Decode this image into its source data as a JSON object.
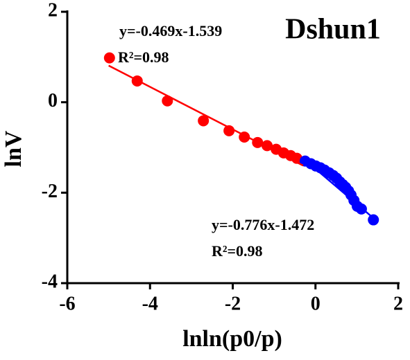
{
  "chart_data": {
    "type": "scatter",
    "title": "Dshun1",
    "x_label": "lnln(p0/p)",
    "y_label": "lnV",
    "xlim": [
      -6,
      2
    ],
    "ylim": [
      -4,
      2
    ],
    "xticks": [
      -6,
      -4,
      -2,
      0,
      2
    ],
    "yticks": [
      -4,
      -2,
      0,
      2
    ],
    "series": [
      {
        "color": "#ff0000",
        "mode": "markers",
        "x": [
          -4.98,
          -4.31,
          -3.58,
          -2.71,
          -2.09,
          -1.72,
          -1.4,
          -1.17,
          -0.95,
          -0.77,
          -0.6,
          -0.45
        ],
        "values": [
          0.98,
          0.47,
          0.03,
          -0.41,
          -0.63,
          -0.77,
          -0.89,
          -0.96,
          -1.04,
          -1.12,
          -1.18,
          -1.24
        ]
      },
      {
        "color": "#0000ff",
        "mode": "markers",
        "x": [
          -0.25,
          -0.11,
          0.01,
          0.12,
          0.22,
          0.33,
          0.43,
          0.51,
          0.59,
          0.66,
          0.73,
          0.8,
          0.86,
          0.93,
          1.01,
          1.11,
          1.4
        ],
        "values": [
          -1.3,
          -1.36,
          -1.41,
          -1.45,
          -1.5,
          -1.56,
          -1.62,
          -1.68,
          -1.76,
          -1.82,
          -1.88,
          -1.96,
          -2.05,
          -2.17,
          -2.3,
          -2.36,
          -2.6
        ]
      },
      {
        "color": "#ff0000",
        "mode": "line",
        "x": [
          -5.0,
          -0.3
        ],
        "values": [
          0.81,
          -1.4
        ]
      },
      {
        "color": "#0000ff",
        "mode": "line",
        "x": [
          -0.3,
          1.45
        ],
        "values": [
          -1.24,
          -2.6
        ]
      }
    ],
    "annotations": [
      "y=-0.469x-1.539",
      "R²=0.98",
      "y=-0.776x-1.472",
      "R²=0.98"
    ]
  }
}
